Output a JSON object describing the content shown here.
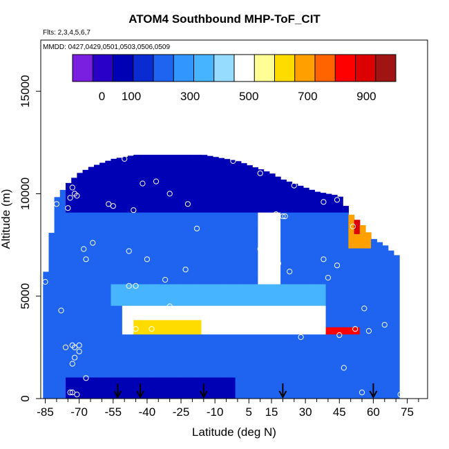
{
  "chart_data": {
    "type": "heatmap",
    "title": "ATOM4 Southbound MHP-ToF_CIT",
    "subtitle_flights": "Flts: 2,3,4,5,6,7",
    "subtitle_dates": "MMDD: 0427,0429,0501,0503,0506,0509",
    "xlabel": "Latitude (deg N)",
    "ylabel": "Altitude (m)",
    "xlim": [
      -87,
      84
    ],
    "ylim": [
      0,
      17500
    ],
    "x_ticks": [
      -85,
      -70,
      -55,
      -40,
      -25,
      -10,
      5,
      15,
      30,
      45,
      60,
      75
    ],
    "x_minor_ticks": [
      -80,
      -75,
      -65,
      -60,
      -50,
      -45,
      -35,
      -30,
      -20,
      -15,
      -5,
      0,
      10,
      20,
      25,
      35,
      40,
      50,
      55,
      65,
      70,
      80
    ],
    "y_ticks": [
      0,
      5000,
      10000,
      15000
    ],
    "colorbar": {
      "range": [
        -100,
        1000
      ],
      "tick_values": [
        0,
        100,
        300,
        500,
        700,
        900
      ],
      "tick_labels": [
        "0",
        "100",
        "300",
        "500",
        "700",
        "900"
      ],
      "colors": [
        "#7a1ee0",
        "#2800c8",
        "#0000b4",
        "#0a2ad2",
        "#1e64f0",
        "#3296ff",
        "#46b4ff",
        "#96dcff",
        "#ffffff",
        "#ffff96",
        "#ffdc00",
        "#ffa000",
        "#ff6400",
        "#ff0000",
        "#dc0000",
        "#a01414"
      ],
      "placement": "top"
    },
    "profile": {
      "lats": [
        -85,
        -80,
        -75,
        -70,
        -65,
        -60,
        -55,
        -50,
        -45,
        -40,
        -35,
        -30,
        -25,
        -20,
        -15,
        -10,
        -5,
        0,
        5,
        10,
        15,
        20,
        25,
        30,
        35,
        40,
        45,
        50,
        55,
        60,
        65,
        70
      ],
      "tops": [
        6000,
        9800,
        10500,
        11000,
        11300,
        11500,
        11700,
        11800,
        11900,
        12000,
        12000,
        12000,
        12000,
        12000,
        11900,
        11800,
        11700,
        11600,
        11400,
        11200,
        11000,
        10700,
        10500,
        10300,
        10100,
        10000,
        9900,
        9000,
        8500,
        7800,
        7500,
        7000
      ]
    },
    "value_field": [
      {
        "lat_range": [
          -85,
          72
        ],
        "alt_range": [
          0,
          12000
        ],
        "value": 230
      },
      {
        "lat_range": [
          -75,
          0
        ],
        "alt_range": [
          0,
          1000
        ],
        "value": 80
      },
      {
        "lat_range": [
          -75,
          70
        ],
        "alt_range": [
          9000,
          12000
        ],
        "value": 100
      },
      {
        "lat_range": [
          -50,
          40
        ],
        "alt_range": [
          3000,
          4500
        ],
        "value": 480
      },
      {
        "lat_range": [
          -45,
          -15
        ],
        "alt_range": [
          3200,
          4000
        ],
        "value": 600
      },
      {
        "lat_range": [
          40,
          55
        ],
        "alt_range": [
          3000,
          3600
        ],
        "value": 820
      },
      {
        "lat_range": [
          48,
          58
        ],
        "alt_range": [
          7500,
          9000
        ],
        "value": 700
      },
      {
        "lat_range": [
          52,
          55
        ],
        "alt_range": [
          8000,
          8600
        ],
        "value": 900
      },
      {
        "lat_range": [
          10,
          20
        ],
        "alt_range": [
          5000,
          9000
        ],
        "value": 460
      },
      {
        "lat_range": [
          -55,
          40
        ],
        "alt_range": [
          4500,
          5500
        ],
        "value": 350
      }
    ],
    "samples": [
      [
        -85,
        5700
      ],
      [
        -80,
        9500
      ],
      [
        -78,
        4300
      ],
      [
        -71,
        11300
      ],
      [
        -73,
        10300
      ],
      [
        -72,
        10000
      ],
      [
        -74,
        9800
      ],
      [
        -71,
        9900
      ],
      [
        -75,
        9300
      ],
      [
        -68,
        7300
      ],
      [
        -67,
        6800
      ],
      [
        -64,
        7600
      ],
      [
        -55,
        9400
      ],
      [
        -50,
        11700
      ],
      [
        -46,
        9200
      ],
      [
        -42,
        10500
      ],
      [
        -36,
        10600
      ],
      [
        -30,
        10000
      ],
      [
        -22,
        9500
      ],
      [
        -18,
        8300
      ],
      [
        -48,
        7200
      ],
      [
        -40,
        6800
      ],
      [
        -32,
        5800
      ],
      [
        -23,
        6300
      ],
      [
        -48,
        5500
      ],
      [
        -45,
        5500
      ],
      [
        -38,
        3400
      ],
      [
        -45,
        3400
      ],
      [
        -30,
        4500
      ],
      [
        -70,
        2600
      ],
      [
        -72,
        2500
      ],
      [
        -76,
        2500
      ],
      [
        -73,
        2600
      ],
      [
        -70,
        2300
      ],
      [
        -72,
        2000
      ],
      [
        -73,
        1700
      ],
      [
        -73,
        300
      ],
      [
        -74,
        300
      ],
      [
        -71,
        200
      ],
      [
        -2,
        11600
      ],
      [
        10,
        11000
      ],
      [
        25,
        10400
      ],
      [
        38,
        9600
      ],
      [
        44,
        9700
      ],
      [
        17,
        9000
      ],
      [
        20,
        8900
      ],
      [
        21,
        8900
      ],
      [
        38,
        6800
      ],
      [
        40,
        5900
      ],
      [
        44,
        6500
      ],
      [
        18,
        6600
      ],
      [
        23,
        6200
      ],
      [
        10,
        7300
      ],
      [
        28,
        3000
      ],
      [
        35,
        3300
      ],
      [
        45,
        3100
      ],
      [
        52,
        3400
      ],
      [
        58,
        3300
      ],
      [
        56,
        4400
      ],
      [
        65,
        3600
      ],
      [
        55,
        300
      ],
      [
        72,
        200
      ],
      [
        72,
        7300
      ],
      [
        51,
        8400
      ],
      [
        47,
        1500
      ],
      [
        -57,
        9500
      ],
      [
        -67,
        1000
      ]
    ],
    "arrows_lat": [
      -53,
      -43,
      -15,
      20,
      60
    ]
  }
}
